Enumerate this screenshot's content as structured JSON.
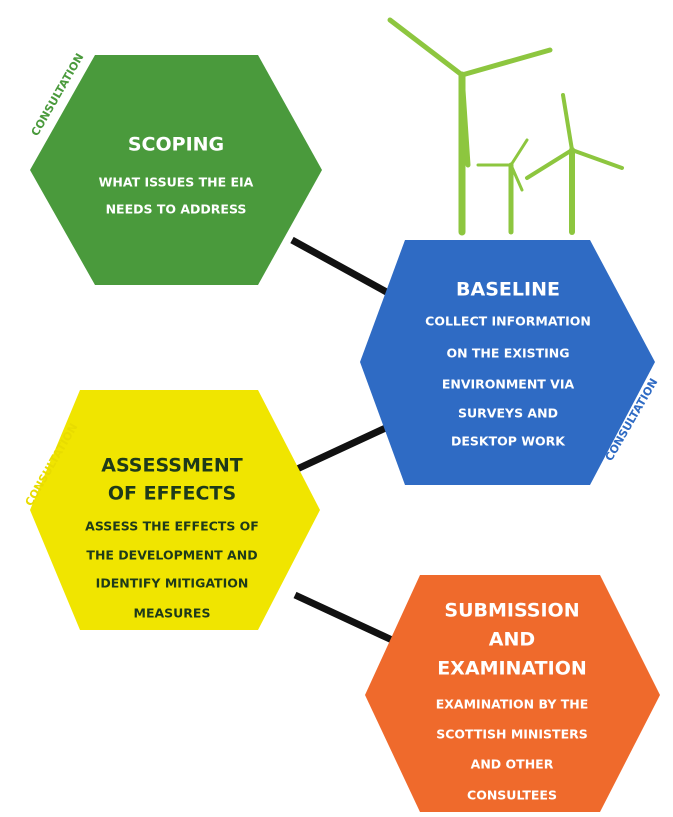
{
  "nodes": [
    {
      "title_lines": [
        "SCOPING"
      ],
      "description_lines": [
        "WHAT ISSUES THE EIA",
        "NEEDS TO ADDRESS"
      ],
      "consultation": "CONSULTATION"
    },
    {
      "title_lines": [
        "BASELINE"
      ],
      "description_lines": [
        "COLLECT INFORMATION",
        "ON THE EXISTING",
        "ENVIRONMENT VIA",
        "SURVEYS AND",
        "DESKTOP WORK"
      ],
      "consultation": "CONSULTATION"
    },
    {
      "title_lines": [
        "ASSESSMENT",
        "OF EFFECTS"
      ],
      "description_lines": [
        "ASSESS THE EFFECTS OF",
        "THE DEVELOPMENT AND",
        "IDENTIFY MITIGATION",
        "MEASURES"
      ],
      "consultation": "CONSULTATION"
    },
    {
      "title_lines": [
        "SUBMISSION",
        "AND",
        "EXAMINATION"
      ],
      "description_lines": [
        "EXAMINATION BY THE",
        "SCOTTISH MINISTERS",
        "AND OTHER",
        "CONSULTEES"
      ]
    }
  ]
}
